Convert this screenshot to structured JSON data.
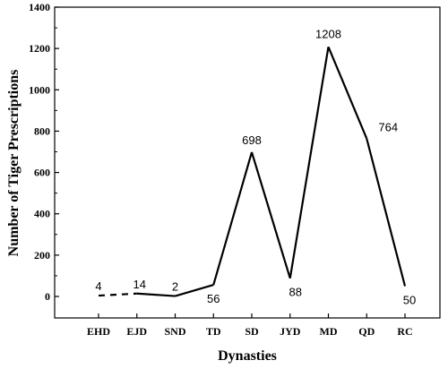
{
  "chart_data": {
    "type": "line",
    "title": "",
    "xlabel": "Dynasties",
    "ylabel": "Number of Tiger Prescriptions",
    "categories": [
      "EHD",
      "EJD",
      "SND",
      "TD",
      "SD",
      "JYD",
      "MD",
      "QD",
      "RC"
    ],
    "series": [
      {
        "values": [
          4,
          14,
          2,
          56,
          698,
          88,
          1208,
          764,
          50
        ],
        "data_labels": [
          "4",
          "14",
          "2",
          "56",
          "698",
          "88",
          "1208",
          "764",
          "50"
        ],
        "dashed_segments": [
          [
            0,
            1
          ]
        ],
        "color": "#000000"
      }
    ],
    "ylim": [
      0,
      1400
    ],
    "yticks": [
      0,
      200,
      400,
      600,
      800,
      1000,
      1200,
      1400
    ],
    "grid": false,
    "legend": "none"
  }
}
